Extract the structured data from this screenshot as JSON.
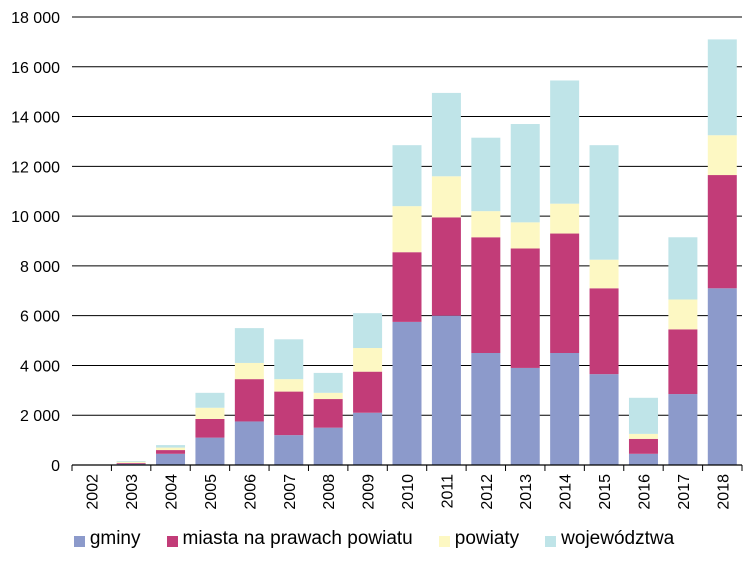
{
  "chart_data": {
    "type": "bar",
    "stacked": true,
    "title": "",
    "xlabel": "",
    "ylabel": "",
    "ylim": [
      0,
      18000
    ],
    "yticks": [
      0,
      2000,
      4000,
      6000,
      8000,
      10000,
      12000,
      14000,
      16000,
      18000
    ],
    "ytick_labels": [
      "0",
      "2 000",
      "4 000",
      "6 000",
      "8 000",
      "10 000",
      "12 000",
      "14 000",
      "16 000",
      "18 000"
    ],
    "grid": true,
    "legend_position": "bottom",
    "categories": [
      "2002",
      "2003",
      "2004",
      "2005",
      "2006",
      "2007",
      "2008",
      "2009",
      "2010",
      "2011",
      "2012",
      "2013",
      "2014",
      "2015",
      "2016",
      "2017",
      "2018"
    ],
    "series": [
      {
        "name": "gminy",
        "color": "#8c9acb",
        "values": [
          0,
          50,
          450,
          1100,
          1750,
          1200,
          1500,
          2100,
          5750,
          6000,
          4500,
          3900,
          4500,
          3650,
          450,
          2850,
          7100
        ]
      },
      {
        "name": "miasta na prawach powiatu",
        "color": "#c23c78",
        "values": [
          0,
          30,
          150,
          750,
          1700,
          1750,
          1150,
          1650,
          2800,
          3950,
          4650,
          4800,
          4800,
          3450,
          600,
          2600,
          4550
        ]
      },
      {
        "name": "powiaty",
        "color": "#fdf8c3",
        "values": [
          0,
          50,
          100,
          450,
          650,
          500,
          250,
          950,
          1850,
          1650,
          1050,
          1050,
          1200,
          1150,
          200,
          1200,
          1600
        ]
      },
      {
        "name": "województwa",
        "color": "#bfe4e8",
        "values": [
          0,
          30,
          100,
          600,
          1400,
          1600,
          800,
          1400,
          2450,
          3350,
          2950,
          3950,
          4950,
          4600,
          1450,
          2500,
          3850
        ]
      }
    ]
  }
}
